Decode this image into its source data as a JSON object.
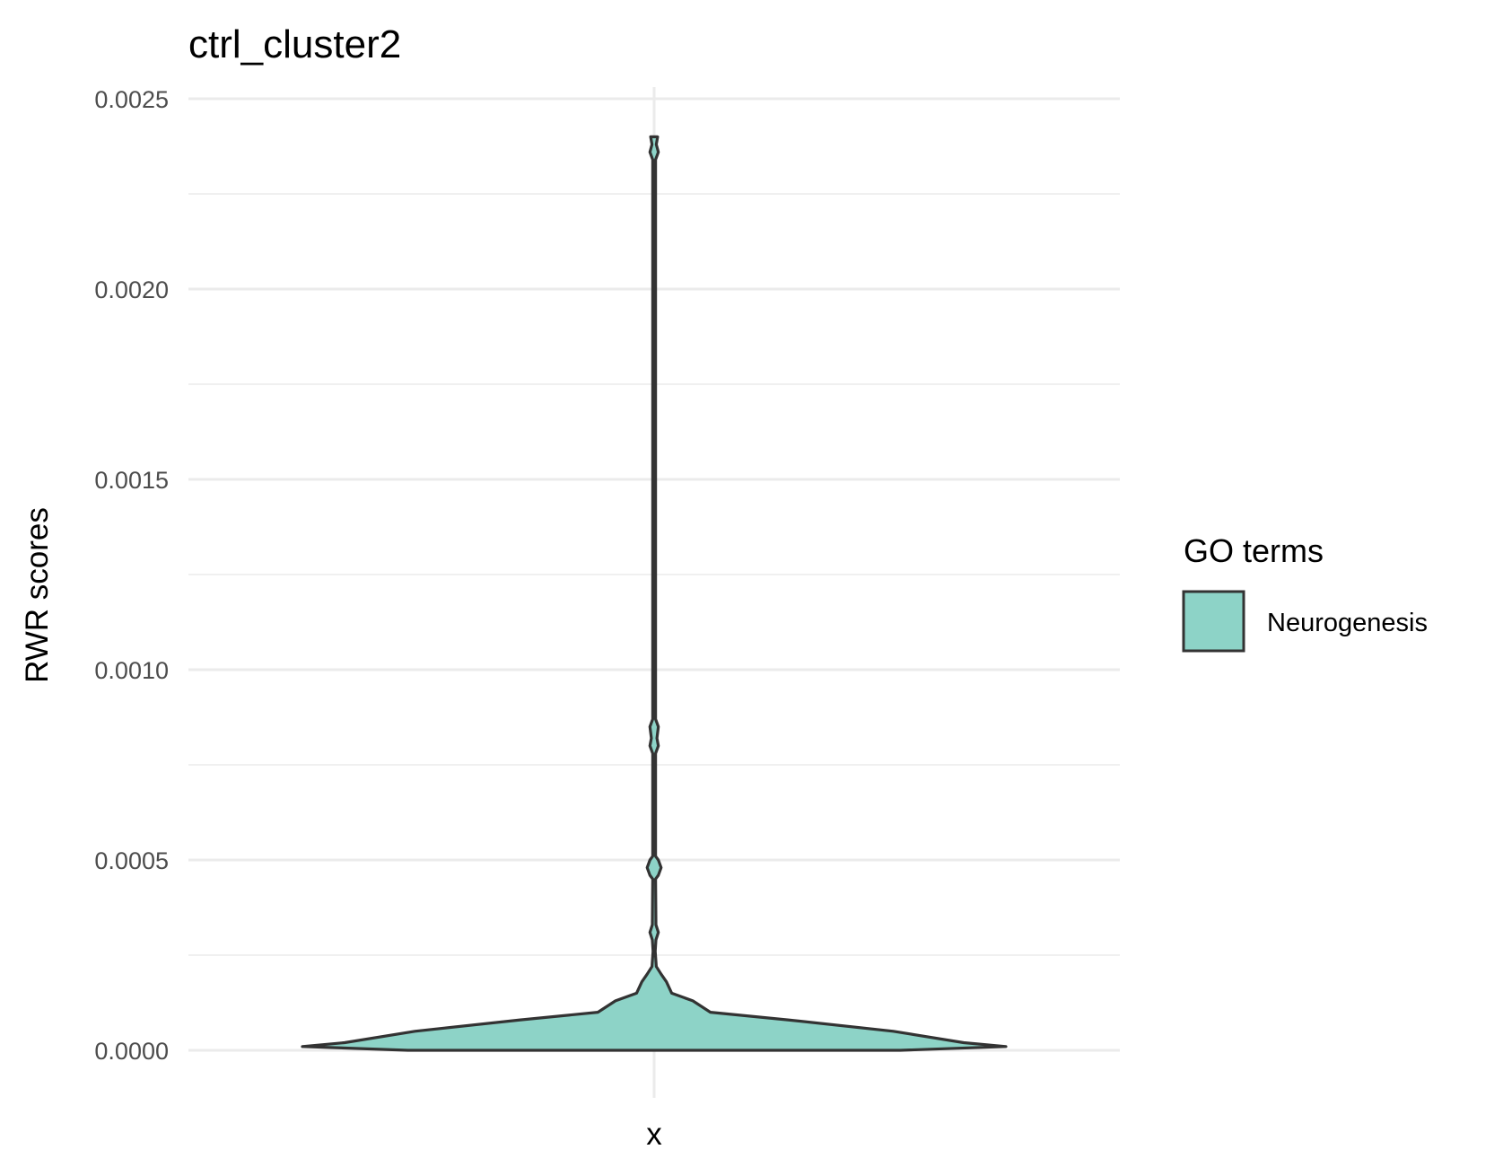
{
  "chart_data": {
    "type": "violin",
    "title": "ctrl_cluster2",
    "xlabel": "",
    "ylabel": "RWR scores",
    "categories": [
      "x"
    ],
    "ylim": [
      0,
      0.0025
    ],
    "yticks": [
      0.0,
      0.0005,
      0.001,
      0.0015,
      0.002,
      0.0025
    ],
    "ytick_labels": [
      "0.0000",
      "0.0005",
      "0.0010",
      "0.0015",
      "0.0020",
      "0.0025"
    ],
    "grid": true,
    "legend": {
      "title": "GO terms",
      "position": "right",
      "entries": [
        {
          "label": "Neurogenesis",
          "color": "#8dd3c7"
        }
      ]
    },
    "series": [
      {
        "category": "x",
        "fill": "#8dd3c7",
        "stroke": "#333333",
        "y_range": [
          0.0,
          0.0024
        ],
        "density_profile": [
          [
            0.0,
            0.7
          ],
          [
            1e-05,
            1.0
          ],
          [
            2e-05,
            0.88
          ],
          [
            5e-05,
            0.68
          ],
          [
            8e-05,
            0.38
          ],
          [
            0.0001,
            0.16
          ],
          [
            0.00013,
            0.11
          ],
          [
            0.00015,
            0.05
          ],
          [
            0.00018,
            0.035
          ],
          [
            0.0002,
            0.02
          ],
          [
            0.00022,
            0.006
          ],
          [
            0.00026,
            0.003
          ],
          [
            0.00029,
            0.005
          ],
          [
            0.00031,
            0.012
          ],
          [
            0.00033,
            0.005
          ],
          [
            0.00045,
            0.004
          ],
          [
            0.00046,
            0.012
          ],
          [
            0.00048,
            0.02
          ],
          [
            0.0005,
            0.012
          ],
          [
            0.00051,
            0.004
          ],
          [
            0.00078,
            0.004
          ],
          [
            0.0008,
            0.012
          ],
          [
            0.00082,
            0.008
          ],
          [
            0.00085,
            0.012
          ],
          [
            0.00087,
            0.004
          ],
          [
            0.00234,
            0.004
          ],
          [
            0.00236,
            0.012
          ],
          [
            0.00238,
            0.006
          ],
          [
            0.0024,
            0.01
          ]
        ]
      }
    ]
  }
}
